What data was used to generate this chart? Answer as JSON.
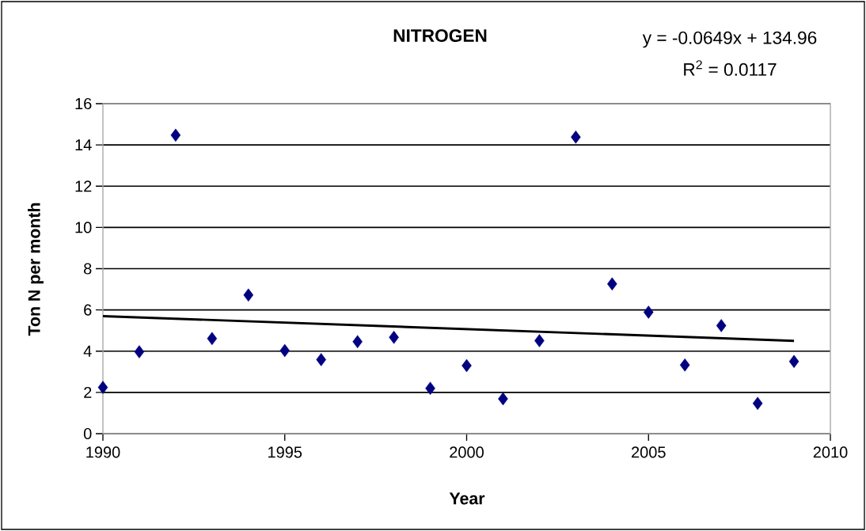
{
  "chart_data": {
    "type": "scatter",
    "title": "NITROGEN",
    "xlabel": "Year",
    "ylabel": "Ton N per month",
    "annotations": [
      "y = -0.0649x  + 134.96",
      "R$^{2}$ = 0.0117"
    ],
    "x": [
      1990,
      1991,
      1992,
      1993,
      1994,
      1995,
      1996,
      1997,
      1998,
      1999,
      2000,
      2001,
      2002,
      2003,
      2004,
      2005,
      2006,
      2007,
      2008,
      2009
    ],
    "series": [
      {
        "color": "#000080",
        "marker": "diamond",
        "values": [
          2.24,
          3.97,
          14.47,
          4.61,
          6.72,
          4.03,
          3.59,
          4.46,
          4.67,
          2.2,
          3.3,
          1.69,
          4.51,
          14.38,
          7.26,
          5.89,
          3.33,
          5.24,
          1.47,
          3.5
        ]
      },
      {
        "type": "line",
        "color": "#000000",
        "x": [
          1990,
          2009
        ],
        "values": [
          5.7,
          4.5
        ]
      }
    ],
    "xlim": [
      1990,
      2010
    ],
    "xticks": [
      1990,
      1995,
      2000,
      2005,
      2010
    ],
    "ylim": [
      0,
      16
    ],
    "yticks": [
      0,
      2,
      4,
      6,
      8,
      10,
      12,
      14,
      16
    ],
    "grid": "y"
  }
}
